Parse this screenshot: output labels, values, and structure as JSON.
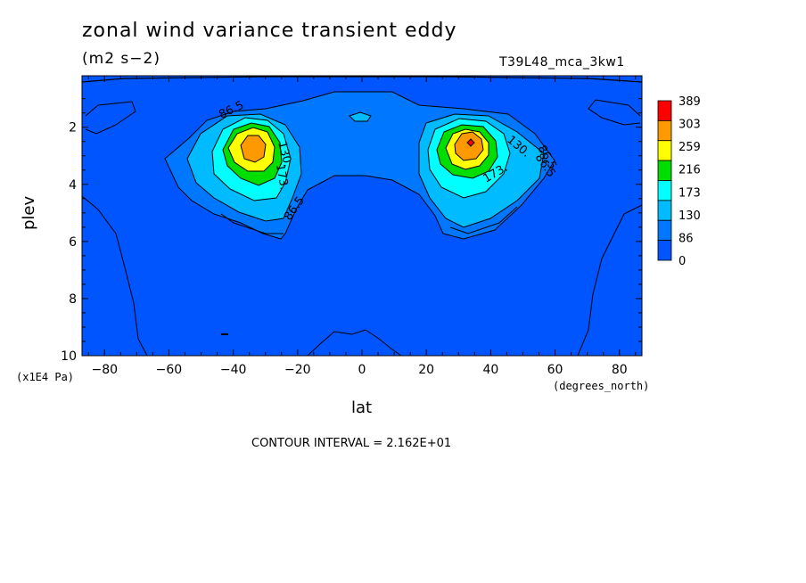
{
  "header": {
    "title": "zonal wind variance transient eddy",
    "units": "(m2 s−2)",
    "run_id": "T39L48_mca_3kw1"
  },
  "footer": {
    "contour_interval": "CONTOUR INTERVAL = 2.162E+01"
  },
  "chart_data": {
    "type": "heatmap",
    "title": "zonal wind variance transient eddy",
    "xlabel": "lat",
    "ylabel": "plev",
    "x_unit_label": "(degrees_north)",
    "y_unit_label": "(x1E4 Pa)",
    "xlim": [
      -87,
      87
    ],
    "ylim": [
      10,
      0.2
    ],
    "x_ticks": [
      -80,
      -60,
      -40,
      -20,
      0,
      20,
      40,
      60,
      80
    ],
    "x_tick_labels": [
      "−80",
      "−60",
      "−40",
      "−20",
      "0",
      "20",
      "40",
      "60",
      "80"
    ],
    "y_ticks": [
      2,
      4,
      6,
      8,
      10
    ],
    "y_tick_labels": [
      "2",
      "4",
      "6",
      "8",
      "10"
    ],
    "colorbar": {
      "labels": [
        "389",
        "303",
        "259",
        "216",
        "173",
        "130",
        "86",
        "0"
      ],
      "colors": [
        "#ff0000",
        "#ff9900",
        "#ffff00",
        "#00dd00",
        "#00ffff",
        "#00bbff",
        "#0077ff",
        "#0055ff"
      ]
    },
    "contour_labels": [
      "86.5",
      "130.",
      "173.",
      "86.5",
      "130.",
      "86.5",
      "173.",
      "86.5"
    ],
    "jets": [
      {
        "lat": -33,
        "plev": 2.6,
        "max_band": "259-303"
      },
      {
        "lat": 35,
        "plev": 2.55,
        "max_band": "303-389"
      }
    ],
    "background_color": "#0055ff"
  }
}
